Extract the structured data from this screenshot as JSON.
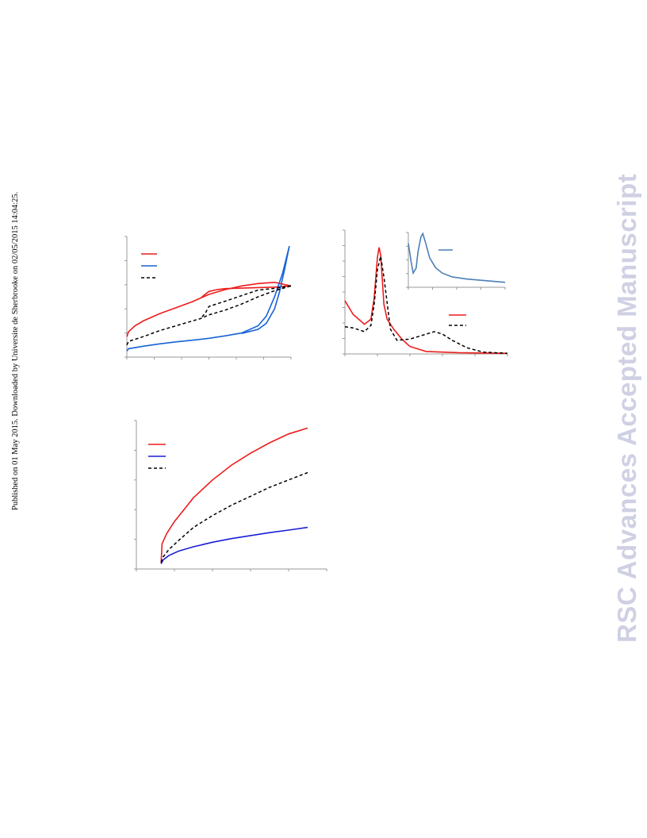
{
  "page": {
    "side_note": "Published on 01 May 2015. Downloaded by Universite de Sherbrooke on 02/05/2015 14:04:25.",
    "watermark": "RSC Advances Accepted Manuscript"
  },
  "colors": {
    "red": "#ee1c1c",
    "blue": "#1763d6",
    "dark_blue": "#1c1fd6",
    "inset_blue": "#4a7fb8",
    "black": "#000000"
  },
  "chart_data": [
    {
      "type": "line",
      "description": "Sorption isotherm-like curves with hysteresis (top-left panel)",
      "xlim": [
        0,
        1
      ],
      "ylim": [
        0,
        5
      ],
      "x_ticks": 6,
      "y_ticks": 5,
      "legend_position": "top-left",
      "series": [
        {
          "color": "#ee1c1c",
          "dash": false,
          "values": [
            [
              0,
              0.85
            ],
            [
              0.01,
              1.05
            ],
            [
              0.05,
              1.3
            ],
            [
              0.1,
              1.5
            ],
            [
              0.2,
              1.8
            ],
            [
              0.3,
              2.05
            ],
            [
              0.4,
              2.3
            ],
            [
              0.45,
              2.45
            ],
            [
              0.5,
              2.6
            ],
            [
              0.6,
              2.8
            ],
            [
              0.7,
              2.95
            ],
            [
              0.8,
              3.05
            ],
            [
              0.9,
              3.1
            ],
            [
              1.0,
              2.95
            ]
          ],
          "desorption": [
            [
              1.0,
              2.95
            ],
            [
              0.9,
              2.9
            ],
            [
              0.8,
              2.88
            ],
            [
              0.7,
              2.86
            ],
            [
              0.6,
              2.84
            ],
            [
              0.55,
              2.8
            ],
            [
              0.5,
              2.72
            ],
            [
              0.48,
              2.62
            ],
            [
              0.45,
              2.45
            ]
          ]
        },
        {
          "color": "#1763d6",
          "dash": false,
          "values": [
            [
              0,
              0.25
            ],
            [
              0.01,
              0.35
            ],
            [
              0.1,
              0.45
            ],
            [
              0.2,
              0.55
            ],
            [
              0.3,
              0.63
            ],
            [
              0.4,
              0.7
            ],
            [
              0.5,
              0.78
            ],
            [
              0.6,
              0.88
            ],
            [
              0.7,
              1.0
            ],
            [
              0.8,
              1.3
            ],
            [
              0.85,
              1.7
            ],
            [
              0.9,
              2.5
            ],
            [
              0.95,
              3.5
            ],
            [
              0.99,
              4.6
            ]
          ],
          "desorption": [
            [
              0.99,
              4.6
            ],
            [
              0.96,
              3.6
            ],
            [
              0.93,
              2.7
            ],
            [
              0.9,
              2.0
            ],
            [
              0.85,
              1.4
            ],
            [
              0.8,
              1.15
            ],
            [
              0.7,
              0.98
            ]
          ]
        },
        {
          "color": "#000000",
          "dash": true,
          "values": [
            [
              0,
              0.5
            ],
            [
              0.01,
              0.65
            ],
            [
              0.1,
              0.85
            ],
            [
              0.2,
              1.1
            ],
            [
              0.3,
              1.3
            ],
            [
              0.4,
              1.5
            ],
            [
              0.45,
              1.6
            ],
            [
              0.5,
              1.75
            ],
            [
              0.6,
              1.95
            ],
            [
              0.7,
              2.2
            ],
            [
              0.8,
              2.5
            ],
            [
              0.9,
              2.75
            ],
            [
              1.0,
              2.95
            ]
          ],
          "desorption": [
            [
              1.0,
              2.95
            ],
            [
              0.9,
              2.85
            ],
            [
              0.8,
              2.78
            ],
            [
              0.7,
              2.55
            ],
            [
              0.6,
              2.32
            ],
            [
              0.5,
              2.1
            ],
            [
              0.48,
              1.85
            ],
            [
              0.45,
              1.6
            ]
          ]
        }
      ]
    },
    {
      "type": "line",
      "description": "Pore size distribution-like curves with inset (top-right panel)",
      "xlim": [
        0,
        100
      ],
      "ylim": [
        0,
        10
      ],
      "x_ticks": 5,
      "y_ticks": 8,
      "legend_position": "right",
      "series": [
        {
          "color": "#ee1c1c",
          "dash": false,
          "values": [
            [
              0,
              4.3
            ],
            [
              5,
              3.2
            ],
            [
              12,
              2.4
            ],
            [
              16,
              2.8
            ],
            [
              18,
              4.5
            ],
            [
              20,
              7.8
            ],
            [
              21,
              8.6
            ],
            [
              22,
              8.0
            ],
            [
              24,
              4.0
            ],
            [
              26,
              2.8
            ],
            [
              30,
              2.0
            ],
            [
              35,
              1.2
            ],
            [
              40,
              0.6
            ],
            [
              50,
              0.2
            ],
            [
              70,
              0.1
            ],
            [
              100,
              0.05
            ]
          ]
        },
        {
          "color": "#000000",
          "dash": true,
          "values": [
            [
              0,
              2.2
            ],
            [
              5,
              2.1
            ],
            [
              12,
              1.8
            ],
            [
              16,
              2.3
            ],
            [
              18,
              4.0
            ],
            [
              20,
              6.8
            ],
            [
              22,
              7.9
            ],
            [
              24,
              6.2
            ],
            [
              28,
              2.0
            ],
            [
              32,
              1.1
            ],
            [
              40,
              1.2
            ],
            [
              45,
              1.4
            ],
            [
              50,
              1.6
            ],
            [
              55,
              1.8
            ],
            [
              60,
              1.6
            ],
            [
              66,
              1.1
            ],
            [
              75,
              0.5
            ],
            [
              85,
              0.15
            ],
            [
              100,
              0.05
            ]
          ]
        }
      ],
      "inset": {
        "xlim": [
          0,
          100
        ],
        "ylim": [
          0,
          10
        ],
        "series": [
          {
            "color": "#4a7fb8",
            "dash": false,
            "values": [
              [
                0,
                8.0
              ],
              [
                3,
                4.5
              ],
              [
                5,
                2.6
              ],
              [
                8,
                3.5
              ],
              [
                10,
                6.5
              ],
              [
                13,
                9.2
              ],
              [
                15,
                9.8
              ],
              [
                18,
                8.0
              ],
              [
                22,
                5.4
              ],
              [
                28,
                3.6
              ],
              [
                35,
                2.6
              ],
              [
                45,
                1.9
              ],
              [
                60,
                1.5
              ],
              [
                80,
                1.2
              ],
              [
                100,
                0.9
              ]
            ]
          }
        ]
      }
    },
    {
      "type": "line",
      "description": "Monotonically increasing curves (bottom-left panel)",
      "xlim": [
        0,
        100
      ],
      "ylim": [
        0,
        10
      ],
      "x_ticks": 5,
      "y_ticks": 5,
      "legend_position": "top-left",
      "series": [
        {
          "color": "#ee1c1c",
          "dash": false,
          "values": [
            [
              13,
              0.4
            ],
            [
              13.5,
              1.7
            ],
            [
              16,
              2.4
            ],
            [
              20,
              3.2
            ],
            [
              25,
              4.0
            ],
            [
              30,
              4.8
            ],
            [
              40,
              6.0
            ],
            [
              50,
              7.0
            ],
            [
              60,
              7.8
            ],
            [
              70,
              8.5
            ],
            [
              80,
              9.1
            ],
            [
              90,
              9.5
            ]
          ]
        },
        {
          "color": "#1c1fd6",
          "dash": false,
          "values": [
            [
              13,
              0.35
            ],
            [
              14,
              0.6
            ],
            [
              17,
              0.9
            ],
            [
              22,
              1.2
            ],
            [
              30,
              1.5
            ],
            [
              40,
              1.8
            ],
            [
              50,
              2.05
            ],
            [
              60,
              2.25
            ],
            [
              70,
              2.45
            ],
            [
              80,
              2.62
            ],
            [
              90,
              2.8
            ]
          ]
        },
        {
          "color": "#000000",
          "dash": true,
          "values": [
            [
              13,
              0.45
            ],
            [
              14,
              0.8
            ],
            [
              17,
              1.3
            ],
            [
              22,
              1.9
            ],
            [
              30,
              2.8
            ],
            [
              40,
              3.6
            ],
            [
              50,
              4.3
            ],
            [
              60,
              4.9
            ],
            [
              70,
              5.5
            ],
            [
              80,
              6.0
            ],
            [
              90,
              6.5
            ]
          ]
        }
      ]
    }
  ]
}
